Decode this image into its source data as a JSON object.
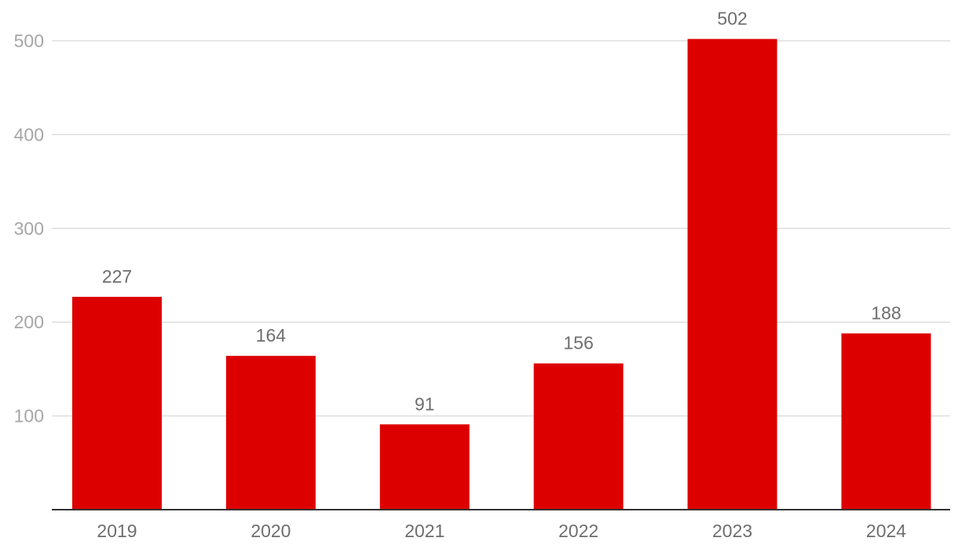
{
  "chart_data": {
    "type": "bar",
    "categories": [
      "2019",
      "2020",
      "2021",
      "2022",
      "2023",
      "2024"
    ],
    "values": [
      227,
      164,
      91,
      156,
      502,
      188
    ],
    "ylim": [
      0,
      500
    ],
    "yticks": [
      100,
      200,
      300,
      400,
      500
    ],
    "grid": true,
    "data_labels": true,
    "legend": "none",
    "colors": {
      "bar": "#dd0000",
      "grid": "#dedede",
      "axis": "#333333"
    }
  }
}
